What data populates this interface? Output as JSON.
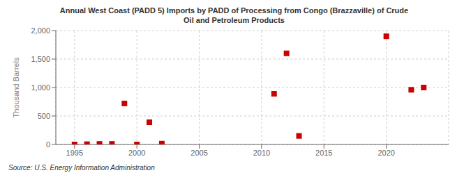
{
  "chart_data": {
    "type": "scatter",
    "title": "Annual West Coast (PADD 5) Imports by PADD of Processing from Congo (Brazzaville) of Crude\nOil and Petroleum Products",
    "y_label": "Thousand Barrels",
    "annotations": [
      "Source: U.S. Energy Information Administration"
    ],
    "x": [
      1995,
      1996,
      1997,
      1998,
      1999,
      2000,
      2001,
      2002,
      2011,
      2012,
      2013,
      2020,
      2022,
      2023
    ],
    "values": [
      0,
      5,
      10,
      10,
      720,
      0,
      390,
      15,
      890,
      1600,
      150,
      1900,
      960,
      1000
    ],
    "color": "#cc0000",
    "marker": "square",
    "xlim": [
      1993.5,
      2025
    ],
    "ylim": [
      0,
      2000
    ],
    "xticks": [
      1995,
      2000,
      2005,
      2010,
      2015,
      2020
    ],
    "yticks": [
      0,
      500,
      {
        "value": 1000,
        "label": "1,000"
      },
      {
        "value": 1500,
        "label": "1,500"
      },
      {
        "value": 2000,
        "label": "2,000"
      }
    ],
    "grid": true
  }
}
